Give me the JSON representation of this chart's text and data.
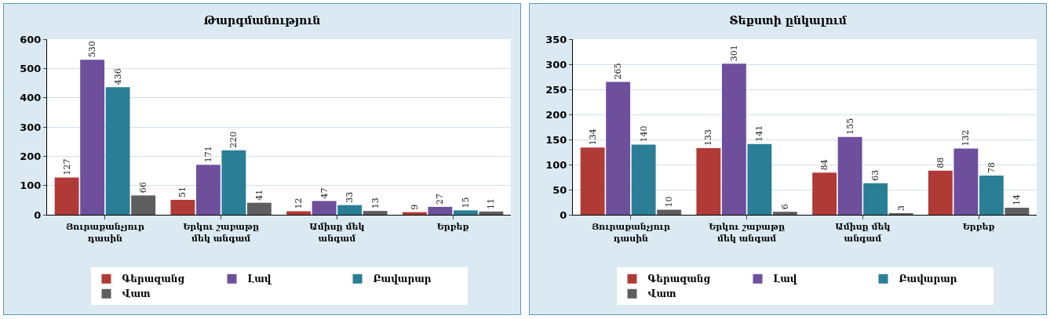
{
  "chart_data": [
    {
      "type": "bar",
      "title": "Թարգմանություն",
      "categories": [
        "Յուրաքանչյուր դասին",
        "Երկու շաբաթը մեկ անգամ",
        "Ամիսը մեկ անգամ",
        "Երբեք"
      ],
      "series": [
        {
          "name": "Գերազանց",
          "color": "#b03a36",
          "values": [
            127,
            51,
            12,
            9
          ]
        },
        {
          "name": "Լավ",
          "color": "#6e4f9c",
          "values": [
            530,
            171,
            47,
            27
          ]
        },
        {
          "name": "Բավարար",
          "color": "#2a7f96",
          "values": [
            436,
            220,
            33,
            15
          ]
        },
        {
          "name": "Վատ",
          "color": "#5e5e5e",
          "values": [
            66,
            41,
            13,
            11
          ]
        }
      ],
      "ylim": [
        0,
        600
      ],
      "yticks": [
        0,
        100,
        200,
        300,
        400,
        500,
        600
      ],
      "grid": "y",
      "legend": "bottom",
      "data_labels": true
    },
    {
      "type": "bar",
      "title": "Տեքստի ընկալում",
      "categories": [
        "Յուրաքանչյուր դասին",
        "Երկու շաբաթը մեկ անգամ",
        "Ամիսը մեկ անգամ",
        "Երբեք"
      ],
      "series": [
        {
          "name": "Գերազանց",
          "color": "#b03a36",
          "values": [
            134,
            133,
            84,
            88
          ]
        },
        {
          "name": "Լավ",
          "color": "#6e4f9c",
          "values": [
            265,
            301,
            155,
            132
          ]
        },
        {
          "name": "Բավարար",
          "color": "#2a7f96",
          "values": [
            140,
            141,
            63,
            78
          ]
        },
        {
          "name": "Վատ",
          "color": "#5e5e5e",
          "values": [
            10,
            6,
            3,
            14
          ]
        }
      ],
      "ylim": [
        0,
        350
      ],
      "yticks": [
        0,
        50,
        100,
        150,
        200,
        250,
        300,
        350
      ],
      "grid": "y",
      "legend": "bottom",
      "data_labels": true
    }
  ]
}
